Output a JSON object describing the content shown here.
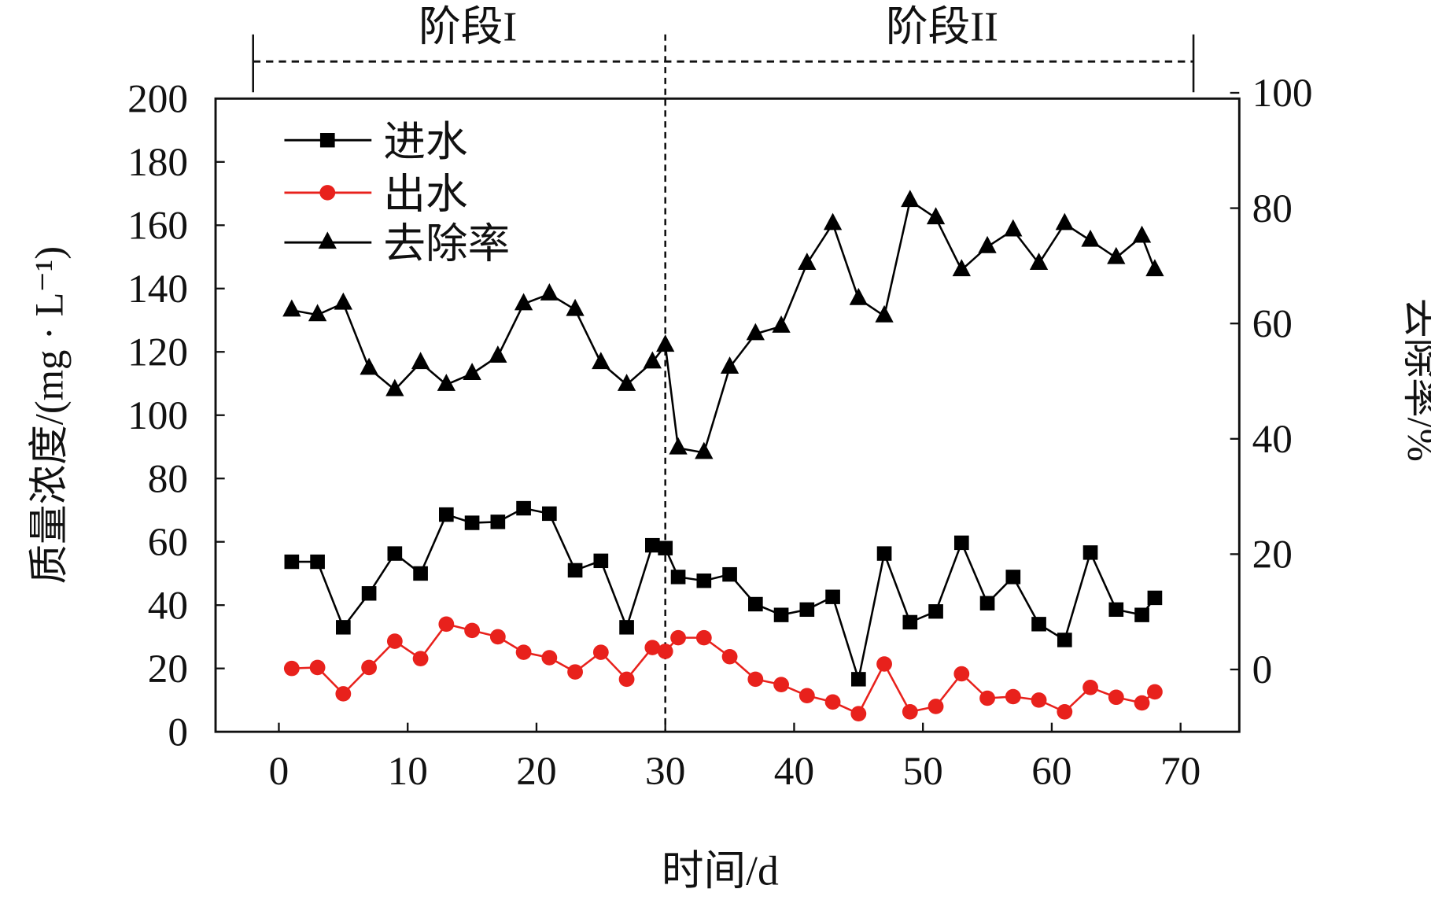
{
  "chart_data": {
    "type": "line",
    "xlabel": "时间/d",
    "ylabel": "质量浓度/(mg · L⁻¹)",
    "y2label": "去除率/%",
    "xlim": [
      -5,
      75
    ],
    "ylim": [
      0,
      200
    ],
    "y2lim": [
      -10.8,
      99
    ],
    "xticks": [
      0,
      10,
      20,
      30,
      40,
      50,
      60,
      70
    ],
    "yticks": [
      0,
      20,
      40,
      60,
      80,
      100,
      120,
      140,
      160,
      180,
      200
    ],
    "y2ticks": [
      0,
      20,
      40,
      60,
      80,
      100
    ],
    "stages": [
      {
        "label": "阶段I",
        "start": -2,
        "end": 30
      },
      {
        "label": "阶段II",
        "start": 30,
        "end": 71
      }
    ],
    "legend_position": "top-left",
    "x": [
      1,
      3,
      5,
      7,
      9,
      11,
      13,
      15,
      17,
      19,
      21,
      23,
      25,
      27,
      29,
      30,
      31,
      33,
      35,
      37,
      39,
      41,
      43,
      45,
      47,
      49,
      51,
      53,
      55,
      57,
      59,
      61,
      63,
      65,
      67,
      68
    ],
    "series": [
      {
        "name": "进水",
        "axis": "left",
        "color": "#000000",
        "marker": "square",
        "values": [
          53.7,
          53.7,
          33,
          43.7,
          56.3,
          50,
          68.6,
          66,
          66.3,
          70.6,
          68.9,
          51,
          54,
          33,
          58.9,
          58,
          48.9,
          47.7,
          49.7,
          40.3,
          36.9,
          38.6,
          42.6,
          16.6,
          56.3,
          34.6,
          38,
          59.7,
          40.6,
          48.9,
          34,
          29,
          56.6,
          38.6,
          36.9,
          42.3
        ]
      },
      {
        "name": "出水",
        "axis": "left",
        "color": "#e8211c",
        "marker": "circle",
        "values": [
          20,
          20.3,
          12,
          20.3,
          28.6,
          23.1,
          34,
          32,
          30,
          25.1,
          23.4,
          18.9,
          25.1,
          16.6,
          26.6,
          25.4,
          29.7,
          29.7,
          23.7,
          16.6,
          14.9,
          11.4,
          9.4,
          5.7,
          21.4,
          6.3,
          8,
          18.3,
          10.6,
          11.1,
          10,
          6.3,
          14,
          10.9,
          9.1,
          12.6
        ]
      },
      {
        "name": "去除率",
        "axis": "right",
        "color": "#000000",
        "marker": "triangle",
        "values": [
          62.3,
          61.5,
          63.5,
          52.2,
          48.5,
          53.2,
          49.4,
          51.3,
          54.3,
          63.4,
          65.1,
          62.4,
          53.2,
          49.4,
          53.3,
          56.2,
          38.4,
          37.6,
          52.4,
          58.2,
          59.5,
          70.4,
          77.3,
          64.3,
          61.3,
          81.3,
          78.3,
          69.3,
          73.3,
          76.2,
          70.4,
          77.3,
          74.4,
          71.4,
          75.1,
          69.3
        ]
      }
    ]
  }
}
